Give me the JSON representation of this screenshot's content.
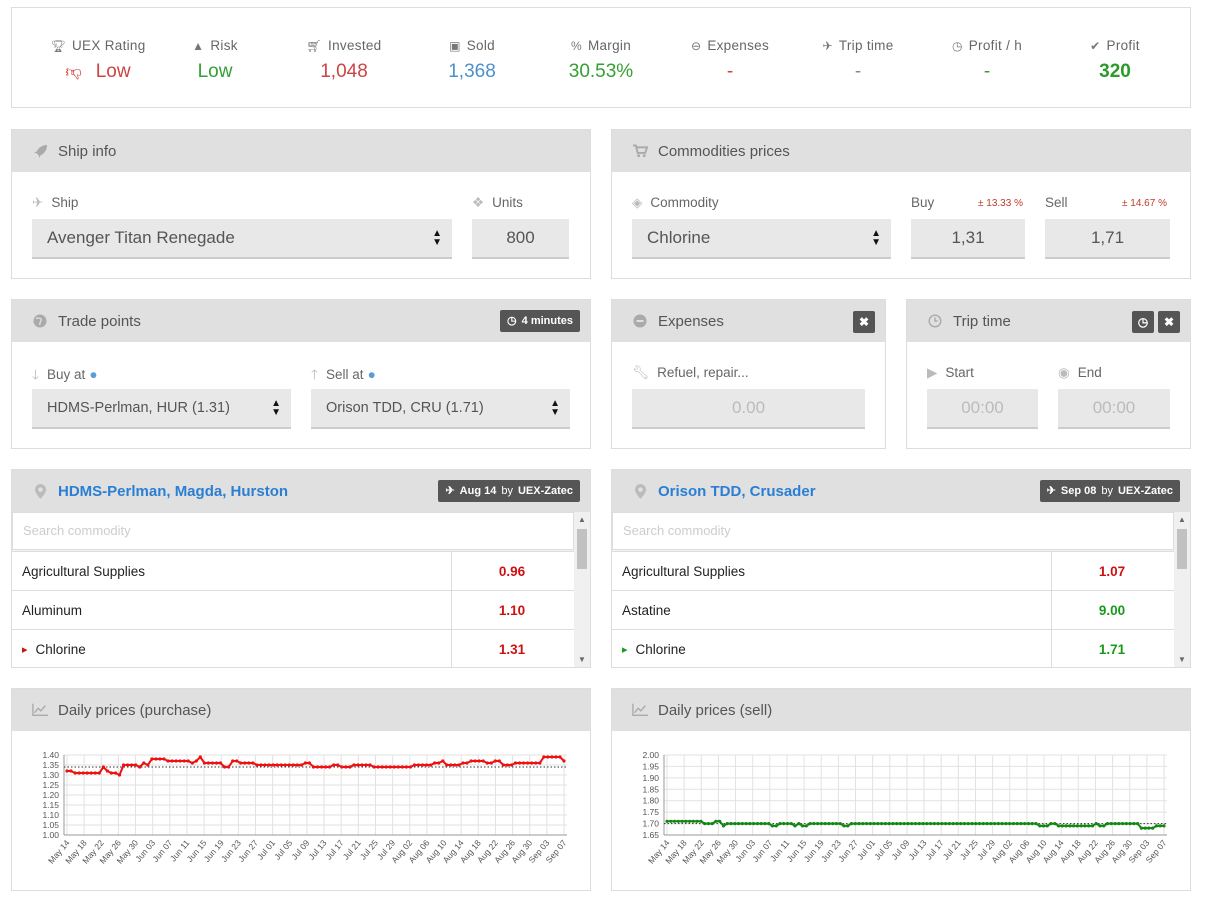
{
  "stats": [
    {
      "name": "uex-rating",
      "label": "UEX Rating",
      "icon": "trophy-icon",
      "value": "Low",
      "color": "#cc4444"
    },
    {
      "name": "risk",
      "label": "Risk",
      "icon": "warning-icon",
      "value": "Low",
      "color": "#33a033"
    },
    {
      "name": "invested",
      "label": "Invested",
      "icon": "cart-icon",
      "value": "1,048",
      "color": "#cc4444"
    },
    {
      "name": "sold",
      "label": "Sold",
      "icon": "money-icon",
      "value": "1,368",
      "color": "#4a90d0"
    },
    {
      "name": "margin",
      "label": "Margin",
      "icon": "percent-icon",
      "value": "30.53%",
      "color": "#33a033"
    },
    {
      "name": "expenses",
      "label": "Expenses",
      "icon": "minus-circle-icon",
      "value": "-",
      "color": "#cc4444"
    },
    {
      "name": "trip-time",
      "label": "Trip time",
      "icon": "plane-icon",
      "value": "-",
      "color": "#888888"
    },
    {
      "name": "profit-per-hour",
      "label": "Profit / h",
      "icon": "clock-icon",
      "value": "-",
      "color": "#33a033"
    },
    {
      "name": "profit",
      "label": "Profit",
      "icon": "check-circle-icon",
      "value": "320",
      "color": "#2a9a2a"
    }
  ],
  "ship": {
    "title": "Ship info",
    "ship_label": "Ship",
    "ship_value": "Avenger Titan Renegade",
    "units_label": "Units",
    "units_value": "800"
  },
  "commodities": {
    "title": "Commodities prices",
    "commodity_label": "Commodity",
    "commodity_value": "Chlorine",
    "buy_label": "Buy",
    "buy_pct": "± 13.33 %",
    "buy_value": "1,31",
    "sell_label": "Sell",
    "sell_pct": "± 14.67 %",
    "sell_value": "1,71"
  },
  "trade": {
    "title": "Trade points",
    "badge": "4 minutes",
    "buy_at_label": "Buy at",
    "buy_at_value": "HDMS-Perlman, HUR (1.31)",
    "sell_at_label": "Sell at",
    "sell_at_value": "Orison TDD, CRU (1.71)"
  },
  "expenses": {
    "title": "Expenses",
    "field_label": "Refuel, repair...",
    "field_placeholder": "0.00"
  },
  "trip": {
    "title": "Trip time",
    "start_label": "Start",
    "start_placeholder": "00:00",
    "end_label": "End",
    "end_placeholder": "00:00"
  },
  "buy_location": {
    "title": "HDMS-Perlman, Magda, Hurston",
    "badge_date": "Aug 14",
    "badge_by": "by",
    "badge_user": "UEX-Zatec",
    "search_placeholder": "Search commodity",
    "rows": [
      {
        "name": "Agricultural Supplies",
        "price": "0.96",
        "marker": ""
      },
      {
        "name": "Aluminum",
        "price": "1.10",
        "marker": ""
      },
      {
        "name": "Chlorine",
        "price": "1.31",
        "marker": "▸"
      }
    ]
  },
  "sell_location": {
    "title": "Orison TDD, Crusader",
    "badge_date": "Sep 08",
    "badge_by": "by",
    "badge_user": "UEX-Zatec",
    "search_placeholder": "Search commodity",
    "rows": [
      {
        "name": "Agricultural Supplies",
        "price": "1.07",
        "color": "red",
        "marker": ""
      },
      {
        "name": "Astatine",
        "price": "9.00",
        "color": "green",
        "marker": ""
      },
      {
        "name": "Chlorine",
        "price": "1.71",
        "color": "green",
        "marker": "▸"
      }
    ]
  },
  "charts_titles": {
    "purchase": "Daily prices (purchase)",
    "sell": "Daily prices (sell)"
  },
  "chart_data": [
    {
      "type": "line",
      "title": "Daily prices (purchase)",
      "xlabel": "",
      "ylabel": "",
      "ylim": [
        1.0,
        1.4
      ],
      "yticks": [
        "1.40",
        "1.35",
        "1.30",
        "1.25",
        "1.20",
        "1.15",
        "1.10",
        "1.05",
        "1.00"
      ],
      "xticks": [
        "May 14",
        "May 18",
        "May 22",
        "May 26",
        "May 30",
        "Jun 03",
        "Jun 07",
        "Jun 11",
        "Jun 15",
        "Jun 19",
        "Jun 23",
        "Jun 27",
        "Jul 01",
        "Jul 05",
        "Jul 09",
        "Jul 13",
        "Jul 17",
        "Jul 21",
        "Jul 25",
        "Jul 29",
        "Aug 02",
        "Aug 06",
        "Aug 10",
        "Aug 14",
        "Aug 18",
        "Aug 22",
        "Aug 26",
        "Aug 30",
        "Sep 03",
        "Sep 07"
      ],
      "color": "#ee1111",
      "average": 1.34,
      "series": [
        {
          "values": [
            1.32,
            1.32,
            1.31,
            1.31,
            1.31,
            1.31,
            1.31,
            1.31,
            1.31,
            1.34,
            1.32,
            1.31,
            1.31,
            1.3,
            1.35,
            1.35,
            1.35,
            1.35,
            1.34,
            1.36,
            1.35,
            1.38,
            1.38,
            1.38,
            1.38,
            1.37,
            1.37,
            1.37,
            1.37,
            1.37,
            1.37,
            1.36,
            1.37,
            1.39,
            1.36,
            1.36,
            1.36,
            1.36,
            1.36,
            1.34,
            1.34,
            1.37,
            1.37,
            1.36,
            1.36,
            1.36,
            1.36,
            1.35,
            1.35,
            1.35,
            1.35,
            1.35,
            1.35,
            1.35,
            1.35,
            1.35,
            1.35,
            1.35,
            1.35,
            1.36,
            1.36,
            1.34,
            1.34,
            1.34,
            1.34,
            1.34,
            1.35,
            1.35,
            1.34,
            1.34,
            1.34,
            1.35,
            1.35,
            1.35,
            1.35,
            1.35,
            1.34,
            1.34,
            1.34,
            1.34,
            1.34,
            1.34,
            1.34,
            1.34,
            1.34,
            1.34,
            1.35,
            1.35,
            1.35,
            1.35,
            1.35,
            1.36,
            1.36,
            1.37,
            1.35,
            1.35,
            1.35,
            1.35,
            1.36,
            1.36,
            1.37,
            1.37,
            1.37,
            1.37,
            1.36,
            1.36,
            1.37,
            1.37,
            1.35,
            1.35,
            1.35,
            1.36,
            1.36,
            1.36,
            1.36,
            1.36,
            1.36,
            1.36,
            1.39,
            1.39,
            1.39,
            1.39,
            1.39,
            1.37
          ]
        }
      ]
    },
    {
      "type": "line",
      "title": "Daily prices (sell)",
      "xlabel": "",
      "ylabel": "",
      "ylim": [
        1.65,
        2.0
      ],
      "yticks": [
        "2.00",
        "1.95",
        "1.90",
        "1.85",
        "1.80",
        "1.75",
        "1.70",
        "1.65"
      ],
      "xticks": [
        "May 14",
        "May 18",
        "May 22",
        "May 26",
        "May 30",
        "Jun 03",
        "Jun 07",
        "Jun 11",
        "Jun 15",
        "Jun 19",
        "Jun 23",
        "Jun 27",
        "Jul 01",
        "Jul 05",
        "Jul 09",
        "Jul 13",
        "Jul 17",
        "Jul 21",
        "Jul 25",
        "Jul 29",
        "Aug 02",
        "Aug 06",
        "Aug 10",
        "Aug 14",
        "Aug 18",
        "Aug 22",
        "Aug 26",
        "Aug 30",
        "Sep 03",
        "Sep 07"
      ],
      "color": "#118811",
      "average": 1.7,
      "series": [
        {
          "values": [
            1.71,
            1.71,
            1.71,
            1.71,
            1.71,
            1.71,
            1.71,
            1.71,
            1.71,
            1.71,
            1.7,
            1.7,
            1.7,
            1.71,
            1.71,
            1.69,
            1.7,
            1.7,
            1.7,
            1.7,
            1.7,
            1.7,
            1.7,
            1.7,
            1.7,
            1.7,
            1.7,
            1.7,
            1.69,
            1.69,
            1.7,
            1.7,
            1.7,
            1.7,
            1.69,
            1.7,
            1.69,
            1.69,
            1.7,
            1.7,
            1.7,
            1.7,
            1.7,
            1.7,
            1.7,
            1.7,
            1.7,
            1.69,
            1.69,
            1.7,
            1.7,
            1.7,
            1.7,
            1.7,
            1.7,
            1.7,
            1.7,
            1.7,
            1.7,
            1.7,
            1.7,
            1.7,
            1.7,
            1.7,
            1.7,
            1.7,
            1.7,
            1.7,
            1.7,
            1.7,
            1.7,
            1.7,
            1.7,
            1.7,
            1.7,
            1.7,
            1.7,
            1.7,
            1.7,
            1.7,
            1.7,
            1.7,
            1.7,
            1.7,
            1.7,
            1.7,
            1.7,
            1.7,
            1.7,
            1.7,
            1.7,
            1.7,
            1.7,
            1.7,
            1.7,
            1.7,
            1.7,
            1.7,
            1.7,
            1.69,
            1.69,
            1.69,
            1.7,
            1.7,
            1.69,
            1.69,
            1.69,
            1.69,
            1.69,
            1.69,
            1.69,
            1.69,
            1.69,
            1.69,
            1.7,
            1.69,
            1.69,
            1.7,
            1.7,
            1.7,
            1.7,
            1.7,
            1.7,
            1.7,
            1.7,
            1.7,
            1.68,
            1.68,
            1.68,
            1.68,
            1.69,
            1.69,
            1.69
          ]
        }
      ]
    }
  ]
}
